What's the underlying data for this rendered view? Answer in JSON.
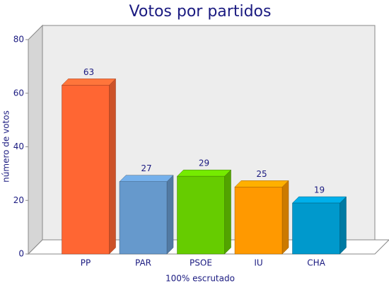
{
  "chart_data": {
    "type": "bar3d",
    "title": "Votos por partidos",
    "y_label": "número de votos",
    "x_label": "100% escrutado",
    "categories": [
      "PP",
      "PAR",
      "PSOE",
      "IU",
      "CHA"
    ],
    "values": [
      63,
      27,
      29,
      25,
      19
    ],
    "colors": [
      "#ff6633",
      "#6699cc",
      "#66cc00",
      "#ff9900",
      "#0099cc"
    ],
    "ylim": [
      0,
      80
    ],
    "yticks": [
      0,
      20,
      40,
      60,
      80
    ]
  }
}
